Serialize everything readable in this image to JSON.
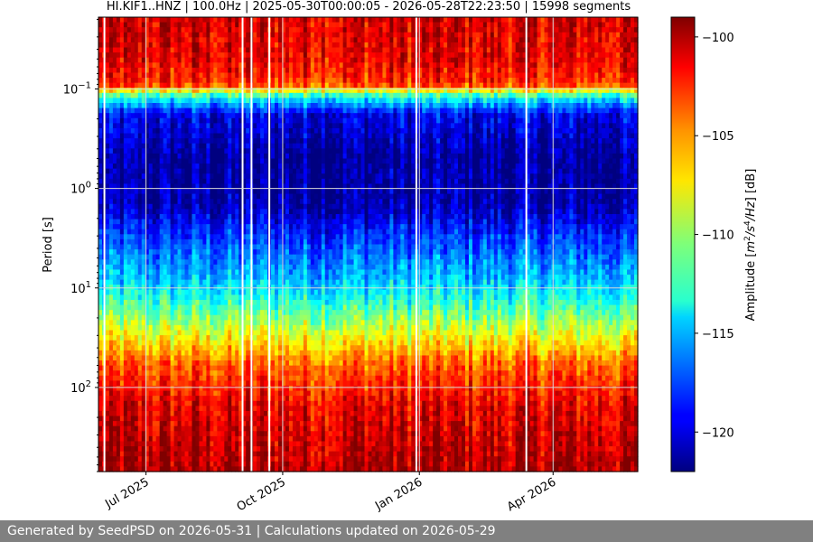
{
  "chart_data": {
    "type": "heatmap",
    "title": "HI.KIF1..HNZ | 100.0Hz | 2025-05-30T00:00:05 - 2026-05-28T22:23:50 | 15998 segments",
    "ylabel": "Period [s]",
    "y_scale": "log",
    "y_inverted": true,
    "ylim": [
      0.019,
      700
    ],
    "y_ticks": [
      {
        "value": 0.1,
        "base": "10",
        "exp": "−1"
      },
      {
        "value": 1,
        "base": "10",
        "exp": "0"
      },
      {
        "value": 10,
        "base": "10",
        "exp": "1"
      },
      {
        "value": 100,
        "base": "10",
        "exp": "2"
      }
    ],
    "xlim": [
      "2025-05-30",
      "2026-05-28"
    ],
    "x_ticks": [
      {
        "date": "2025-07-01",
        "label": "Jul 2025"
      },
      {
        "date": "2025-10-01",
        "label": "Oct 2025"
      },
      {
        "date": "2026-01-01",
        "label": "Jan 2026"
      },
      {
        "date": "2026-04-01",
        "label": "Apr 2026"
      }
    ],
    "grid": true,
    "colormap": "jet",
    "colorbar": {
      "label": "Amplitude",
      "unit": "m^2/s^4/Hz",
      "unit_suffix": "[dB]",
      "range": [
        -122,
        -99
      ],
      "ticks": [
        {
          "value": -100,
          "label": "−100"
        },
        {
          "value": -105,
          "label": "−105"
        },
        {
          "value": -110,
          "label": "−110"
        },
        {
          "value": -115,
          "label": "−115"
        },
        {
          "value": -120,
          "label": "−120"
        }
      ]
    },
    "amplitude_profile_db": [
      {
        "period": 0.019,
        "db": -101
      },
      {
        "period": 0.05,
        "db": -101.5
      },
      {
        "period": 0.09,
        "db": -103
      },
      {
        "period": 0.12,
        "db": -113
      },
      {
        "period": 0.18,
        "db": -119.5
      },
      {
        "period": 0.5,
        "db": -121.5
      },
      {
        "period": 1.5,
        "db": -121
      },
      {
        "period": 3,
        "db": -118
      },
      {
        "period": 8,
        "db": -115
      },
      {
        "period": 15,
        "db": -112
      },
      {
        "period": 30,
        "db": -108
      },
      {
        "period": 60,
        "db": -104
      },
      {
        "period": 150,
        "db": -101.5
      },
      {
        "period": 700,
        "db": -100
      }
    ],
    "data_gap_dates": [
      "2025-06-03",
      "2025-09-04",
      "2025-09-10",
      "2025-09-22",
      "2025-12-30",
      "2026-03-14"
    ]
  },
  "footer": {
    "text": "Generated by SeedPSD on 2026-05-31 | Calculations updated on 2026-05-29"
  },
  "colors": {
    "footer_background": "#808080",
    "footer_text": "#ffffff",
    "gridline": "#d9d9d9"
  }
}
